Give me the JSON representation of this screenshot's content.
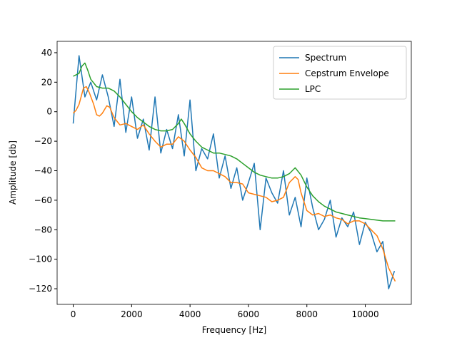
{
  "chart_data": {
    "type": "line",
    "xlabel": "Frequency [Hz]",
    "ylabel": "Amplitude [db]",
    "xlim": [
      -551,
      11576
    ],
    "ylim": [
      -130.6,
      47.7
    ],
    "xticks": [
      0,
      2000,
      4000,
      6000,
      8000,
      10000
    ],
    "yticks": [
      {
        "value": -120,
        "label": "−120"
      },
      {
        "value": -100,
        "label": "−100"
      },
      {
        "value": -80,
        "label": "−80"
      },
      {
        "value": -60,
        "label": "−60"
      },
      {
        "value": -40,
        "label": "−40"
      },
      {
        "value": -20,
        "label": "−20"
      },
      0,
      20,
      40
    ],
    "legend": "upper right",
    "series": [
      {
        "name": "Spectrum",
        "color": "#1f77b4",
        "x": [
          0,
          200,
          400,
          600,
          800,
          1000,
          1200,
          1400,
          1600,
          1800,
          2000,
          2200,
          2400,
          2600,
          2800,
          3000,
          3200,
          3400,
          3600,
          3800,
          4000,
          4200,
          4400,
          4600,
          4800,
          5000,
          5200,
          5400,
          5600,
          5800,
          6000,
          6200,
          6400,
          6600,
          6800,
          7000,
          7200,
          7400,
          7600,
          7800,
          8000,
          8200,
          8400,
          8600,
          8800,
          9000,
          9200,
          9400,
          9600,
          9800,
          10000,
          10200,
          10400,
          10600,
          10800,
          11000
        ],
        "values": [
          -8,
          38,
          10,
          20,
          8,
          25,
          10,
          -10,
          22,
          -14,
          10,
          -18,
          -5,
          -26,
          10,
          -28,
          -12,
          -25,
          -2,
          -30,
          8,
          -40,
          -25,
          -32,
          -15,
          -45,
          -30,
          -52,
          -38,
          -60,
          -48,
          -35,
          -80,
          -45,
          -55,
          -62,
          -40,
          -70,
          -58,
          -78,
          -45,
          -65,
          -80,
          -73,
          -60,
          -85,
          -72,
          -78,
          -68,
          -90,
          -75,
          -82,
          -95,
          -88,
          -120,
          -108
        ]
      },
      {
        "name": "Cepstrum Envelope",
        "color": "#ff7f0e",
        "x": [
          0,
          100,
          200,
          350,
          450,
          550,
          700,
          800,
          900,
          1000,
          1150,
          1250,
          1400,
          1600,
          1800,
          2000,
          2200,
          2400,
          2600,
          2800,
          3000,
          3200,
          3400,
          3600,
          3800,
          4000,
          4200,
          4400,
          4600,
          4800,
          5000,
          5200,
          5400,
          5600,
          5800,
          6000,
          6200,
          6400,
          6600,
          6800,
          7000,
          7200,
          7400,
          7600,
          7700,
          7800,
          8000,
          8200,
          8400,
          8600,
          8800,
          9000,
          9200,
          9400,
          9600,
          9800,
          10000,
          10200,
          10400,
          10600,
          10800,
          11025
        ],
        "values": [
          -1,
          1,
          5,
          16,
          17,
          13,
          5,
          -2,
          -3,
          -1,
          4,
          3,
          -4,
          -9,
          -8,
          -10,
          -12,
          -9,
          -15,
          -20,
          -24,
          -22,
          -22,
          -17,
          -20,
          -26,
          -31,
          -38,
          -40,
          -40,
          -42,
          -44,
          -48,
          -48,
          -49,
          -55,
          -56,
          -57,
          -58,
          -61,
          -60,
          -58,
          -48,
          -44,
          -46,
          -55,
          -67,
          -70,
          -69,
          -71,
          -70,
          -72,
          -73,
          -76,
          -74,
          -74,
          -76,
          -80,
          -84,
          -93,
          -106,
          -115
        ]
      },
      {
        "name": "LPC",
        "color": "#2ca02c",
        "x": [
          0,
          200,
          300,
          400,
          500,
          600,
          800,
          1000,
          1200,
          1400,
          1600,
          1800,
          2000,
          2200,
          2400,
          2600,
          2800,
          3000,
          3200,
          3400,
          3600,
          3700,
          3800,
          4000,
          4200,
          4400,
          4600,
          4800,
          5000,
          5200,
          5400,
          5600,
          5800,
          6000,
          6200,
          6400,
          6600,
          6800,
          7000,
          7200,
          7400,
          7600,
          7800,
          8000,
          8200,
          8400,
          8600,
          8800,
          9000,
          9400,
          9800,
          10200,
          10600,
          11025
        ],
        "values": [
          24,
          26,
          31,
          33,
          28,
          22,
          17,
          16,
          16,
          14,
          10,
          5,
          0,
          -4,
          -7,
          -10,
          -12,
          -13,
          -13,
          -12,
          -8,
          -5,
          -8,
          -15,
          -20,
          -24,
          -26,
          -28,
          -28,
          -29,
          -30,
          -32,
          -35,
          -38,
          -41,
          -43,
          -44,
          -45,
          -45,
          -44,
          -42,
          -38,
          -43,
          -51,
          -57,
          -61,
          -64,
          -66,
          -68,
          -70,
          -72,
          -73,
          -74,
          -74
        ]
      }
    ]
  }
}
